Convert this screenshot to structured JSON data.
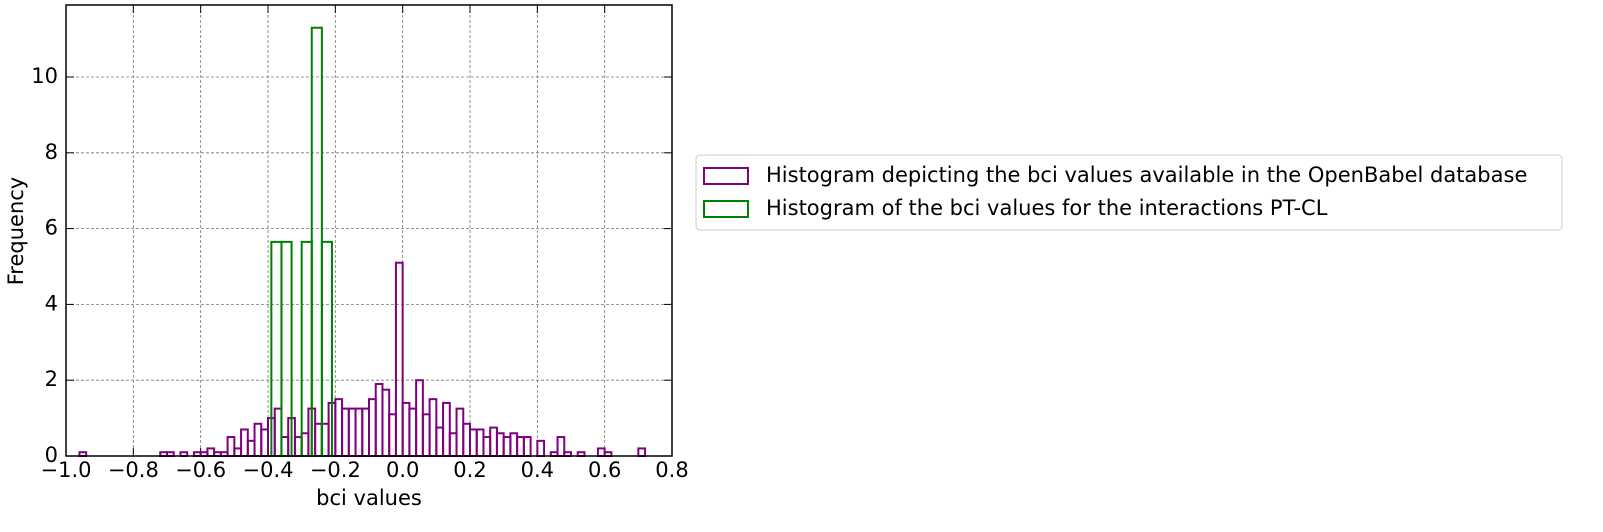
{
  "chart_data": {
    "type": "histogram",
    "xlabel": "bci values",
    "ylabel": "Frequency",
    "xlim": [
      -1.0,
      0.8
    ],
    "ylim": [
      0,
      11.9
    ],
    "xticks": [
      {
        "value": -1.0,
        "label": "−1.0"
      },
      {
        "value": -0.8,
        "label": "−0.8"
      },
      {
        "value": -0.6,
        "label": "−0.6"
      },
      {
        "value": -0.4,
        "label": "−0.4"
      },
      {
        "value": -0.2,
        "label": "−0.2"
      },
      {
        "value": 0.0,
        "label": "0.0"
      },
      0.2,
      0.4,
      0.6,
      0.8
    ],
    "yticks": [
      0,
      2,
      4,
      6,
      8,
      10
    ],
    "grid": true,
    "legend_position": "right",
    "series": [
      {
        "name": "Histogram depicting the bci values available in the OpenBabel database",
        "color": "#800080",
        "bins": [
          -0.96,
          -0.94,
          -0.92,
          -0.9,
          -0.88,
          -0.86,
          -0.84,
          -0.82,
          -0.8,
          -0.78,
          -0.76,
          -0.74,
          -0.72,
          -0.7,
          -0.68,
          -0.66,
          -0.64,
          -0.62,
          -0.6,
          -0.58,
          -0.56,
          -0.54,
          -0.52,
          -0.5,
          -0.48,
          -0.46,
          -0.44,
          -0.42,
          -0.4,
          -0.38,
          -0.36,
          -0.34,
          -0.32,
          -0.3,
          -0.28,
          -0.26,
          -0.24,
          -0.22,
          -0.2,
          -0.18,
          -0.16,
          -0.14,
          -0.12,
          -0.1,
          -0.08,
          -0.06,
          -0.04,
          -0.02,
          0.0,
          0.02,
          0.04,
          0.06,
          0.08,
          0.1,
          0.12,
          0.14,
          0.16,
          0.18,
          0.2,
          0.22,
          0.24,
          0.26,
          0.28,
          0.3,
          0.32,
          0.34,
          0.36,
          0.38,
          0.4,
          0.42,
          0.44,
          0.46,
          0.48,
          0.5,
          0.52,
          0.54,
          0.56,
          0.58,
          0.6,
          0.62,
          0.64,
          0.66,
          0.68,
          0.7,
          0.72
        ],
        "values": [
          0.1,
          0,
          0,
          0,
          0,
          0,
          0,
          0,
          0,
          0,
          0,
          0,
          0.1,
          0.1,
          0,
          0.1,
          0,
          0.1,
          0.1,
          0.2,
          0.1,
          0.1,
          0.5,
          0.2,
          0.7,
          0.4,
          0.85,
          0.7,
          1.0,
          1.25,
          0.5,
          1.0,
          0.5,
          0.6,
          1.25,
          0.85,
          0.85,
          1.4,
          1.5,
          1.25,
          1.25,
          1.25,
          1.25,
          1.5,
          1.9,
          1.75,
          1.1,
          5.1,
          1.4,
          1.25,
          2.0,
          1.1,
          1.5,
          0.75,
          1.4,
          0.6,
          1.25,
          0.85,
          0.7,
          0.7,
          0.5,
          0.75,
          0.6,
          0.5,
          0.6,
          0.5,
          0.5,
          0,
          0.4,
          0,
          0.1,
          0.5,
          0.1,
          0,
          0.1,
          0,
          0,
          0.2,
          0.1,
          0,
          0,
          0,
          0,
          0.2
        ]
      },
      {
        "name": "Histogram of the bci values for the interactions PT-CL",
        "color": "#008000",
        "bins": [
          -0.39,
          -0.36,
          -0.33,
          -0.3,
          -0.27,
          -0.24,
          -0.21
        ],
        "values": [
          5.65,
          5.65,
          0,
          5.65,
          11.3,
          5.65
        ]
      }
    ]
  }
}
